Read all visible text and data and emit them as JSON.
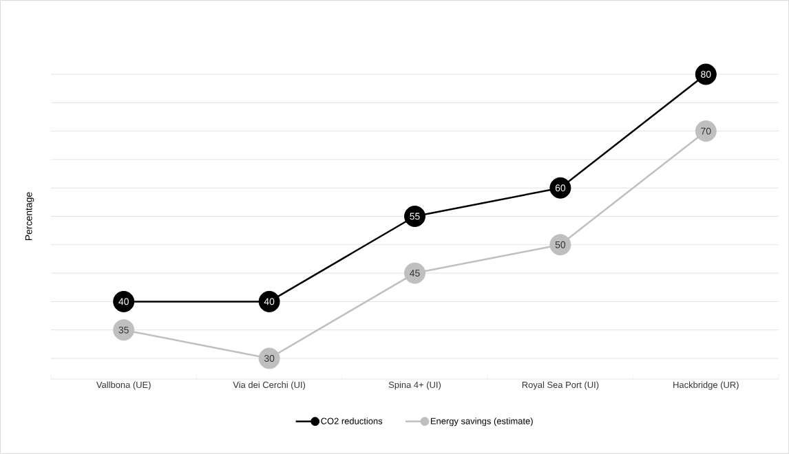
{
  "chart_data": {
    "type": "line",
    "ylabel": "Percentage",
    "categories": [
      "Vallbona (UE)",
      "Via dei Cerchi (UI)",
      "Spina 4+ (UI)",
      "Royal Sea Port (UI)",
      "Hackbridge (UR)"
    ],
    "series": [
      {
        "name": "CO2 reductions",
        "color": "#000000",
        "values": [
          40,
          40,
          55,
          60,
          80
        ]
      },
      {
        "name": "Energy savings (estimate)",
        "color": "#bfbfbf",
        "values": [
          35,
          30,
          45,
          50,
          70
        ]
      }
    ],
    "grid": "y",
    "legend": "bottom",
    "marker": "circle",
    "line_style": "solid",
    "data_labels": true,
    "tick_labels": "x"
  }
}
